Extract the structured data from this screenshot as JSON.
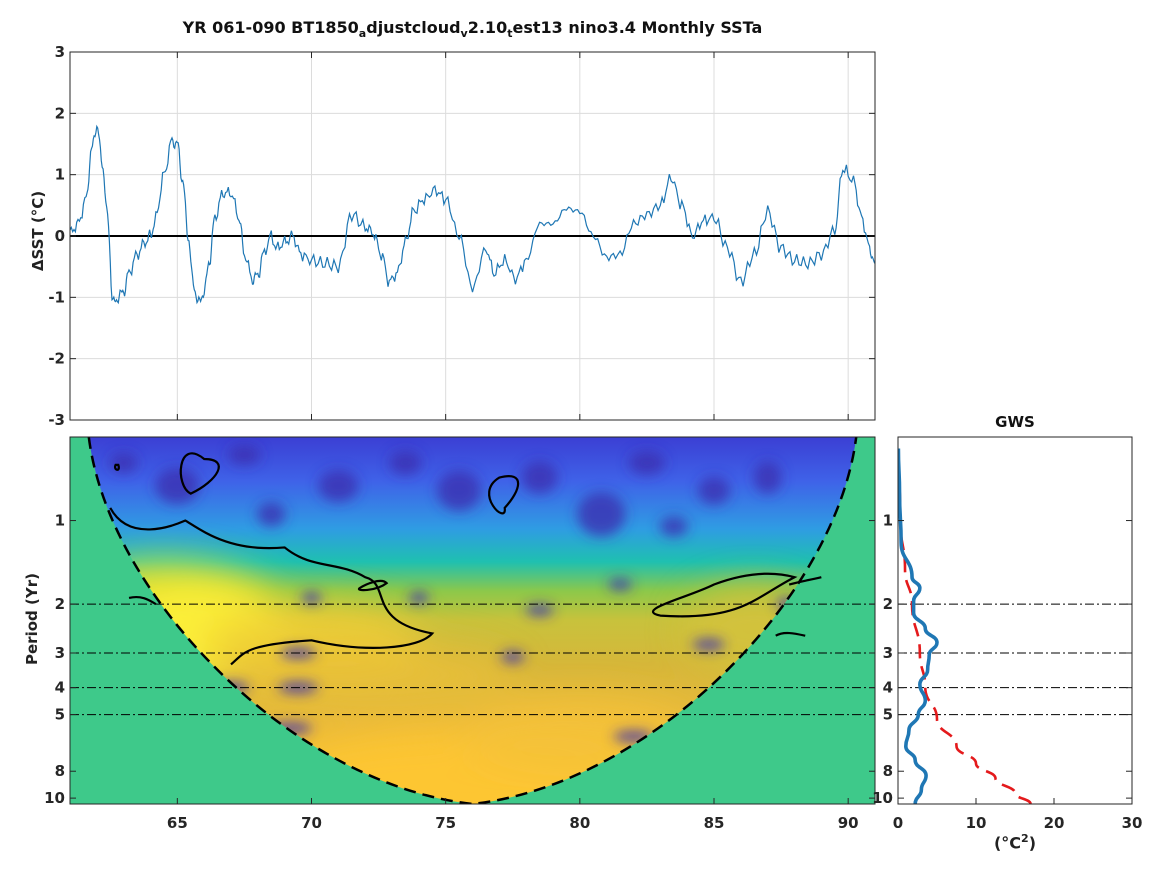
{
  "chart_data": [
    {
      "type": "line",
      "title_parts": [
        "YR 061-090 BT1850",
        "a",
        "djustcloud",
        "v",
        "2.10",
        "t",
        "est13 nino3.4 Monthly SSTa"
      ],
      "ylabel": "ΔSST (°C)",
      "xlim": [
        61,
        91
      ],
      "ylim": [
        -3,
        3
      ],
      "xticks": [
        65,
        70,
        75,
        80,
        85,
        90
      ],
      "yticks": [
        -3,
        -2,
        -1,
        0,
        1,
        2,
        3
      ],
      "grid": true,
      "zero_line": true,
      "color": "#1f77b4",
      "series": [
        {
          "x": [
            61.0,
            61.3,
            61.6,
            61.8,
            62.0,
            62.2,
            62.4,
            62.6,
            62.8,
            63.0,
            63.2,
            63.5,
            63.8,
            64.0,
            64.2,
            64.5,
            64.8,
            65.0,
            65.2,
            65.4,
            65.6,
            65.8,
            66.0,
            66.2,
            66.4,
            66.7,
            67.0,
            67.3,
            67.5,
            67.8,
            68.0,
            68.2,
            68.5,
            68.7,
            69.0,
            69.3,
            69.6,
            70.0,
            70.5,
            71.0,
            71.5,
            72.0,
            72.3,
            72.6,
            72.9,
            73.2,
            73.5,
            73.8,
            74.2,
            74.6,
            75.0,
            75.5,
            76.0,
            76.5,
            76.8,
            77.2,
            77.6,
            78.0,
            78.5,
            79.0,
            79.5,
            80.0,
            80.5,
            81.0,
            81.5,
            82.0,
            82.5,
            83.0,
            83.4,
            83.8,
            84.2,
            84.6,
            85.0,
            85.5,
            86.0,
            86.5,
            87.0,
            87.5,
            88.0,
            88.5,
            89.0,
            89.5,
            89.8,
            90.2,
            90.5,
            90.8,
            91.0
          ],
          "y": [
            0.05,
            0.2,
            0.6,
            1.4,
            1.8,
            1.2,
            0.3,
            -1.1,
            -1.0,
            -0.9,
            -0.6,
            -0.3,
            -0.1,
            0.0,
            0.3,
            1.0,
            1.55,
            1.5,
            0.9,
            0.0,
            -0.8,
            -1.1,
            -0.9,
            -0.4,
            0.3,
            0.7,
            0.7,
            0.3,
            -0.3,
            -0.7,
            -0.65,
            -0.3,
            0.0,
            -0.2,
            -0.1,
            0.0,
            -0.3,
            -0.4,
            -0.45,
            -0.5,
            0.35,
            0.15,
            0.05,
            -0.3,
            -0.75,
            -0.6,
            -0.1,
            0.4,
            0.6,
            0.75,
            0.6,
            0.0,
            -0.85,
            -0.2,
            -0.6,
            -0.4,
            -0.7,
            -0.4,
            0.2,
            0.2,
            0.45,
            0.4,
            0.0,
            -0.35,
            -0.3,
            0.2,
            0.35,
            0.5,
            0.95,
            0.5,
            0.0,
            0.25,
            0.3,
            -0.2,
            -0.75,
            -0.3,
            0.4,
            -0.2,
            -0.4,
            -0.45,
            -0.3,
            0.1,
            1.1,
            0.9,
            0.3,
            -0.2,
            -0.45
          ]
        }
      ]
    },
    {
      "type": "heatmap",
      "ylabel": "Period (Yr)",
      "xlim": [
        61,
        91
      ],
      "ylim": [
        0.5,
        10.5
      ],
      "yscale": "log",
      "xticks": [
        65,
        70,
        75,
        80,
        85,
        90
      ],
      "yticks": [
        1,
        2,
        3,
        4,
        5,
        8,
        10
      ],
      "reference_periods": [
        2,
        3,
        4,
        5
      ],
      "cone_of_influence": true,
      "colormap": "parula",
      "outside_cone_color": "#3ec98a"
    },
    {
      "type": "line",
      "title": "GWS",
      "xlabel_base": "(°C",
      "xlabel_sup": "2",
      "xlabel_end": ")",
      "xlim": [
        0,
        30
      ],
      "ylim": [
        0.5,
        10.5
      ],
      "yscale": "log",
      "xticks": [
        0,
        10,
        20,
        30
      ],
      "yticks": [
        1,
        2,
        3,
        4,
        5,
        8,
        10
      ],
      "series": [
        {
          "style": "solid",
          "color": "#1f77b4",
          "points": [
            [
              0.05,
              0.55
            ],
            [
              0.2,
              0.8
            ],
            [
              0.4,
              1.2
            ],
            [
              1.8,
              1.6
            ],
            [
              2.8,
              1.75
            ],
            [
              2.0,
              1.95
            ],
            [
              2.0,
              2.15
            ],
            [
              3.5,
              2.45
            ],
            [
              5.0,
              2.75
            ],
            [
              4.0,
              3.05
            ],
            [
              3.8,
              3.45
            ],
            [
              2.8,
              3.9
            ],
            [
              3.5,
              4.45
            ],
            [
              2.6,
              5.0
            ],
            [
              1.4,
              5.7
            ],
            [
              1.0,
              6.5
            ],
            [
              2.2,
              7.3
            ],
            [
              3.6,
              8.3
            ],
            [
              3.0,
              9.3
            ],
            [
              2.2,
              10.5
            ]
          ]
        },
        {
          "style": "dashed",
          "color": "#e41a1c",
          "points": [
            [
              0.05,
              0.55
            ],
            [
              0.3,
              1.0
            ],
            [
              0.9,
              1.5
            ],
            [
              1.8,
              2.0
            ],
            [
              2.8,
              3.0
            ],
            [
              3.5,
              4.0
            ],
            [
              5.0,
              5.2
            ],
            [
              7.5,
              6.5
            ],
            [
              10.0,
              7.5
            ],
            [
              12.5,
              8.5
            ],
            [
              15.0,
              9.6
            ],
            [
              17.0,
              10.5
            ]
          ]
        }
      ]
    }
  ]
}
